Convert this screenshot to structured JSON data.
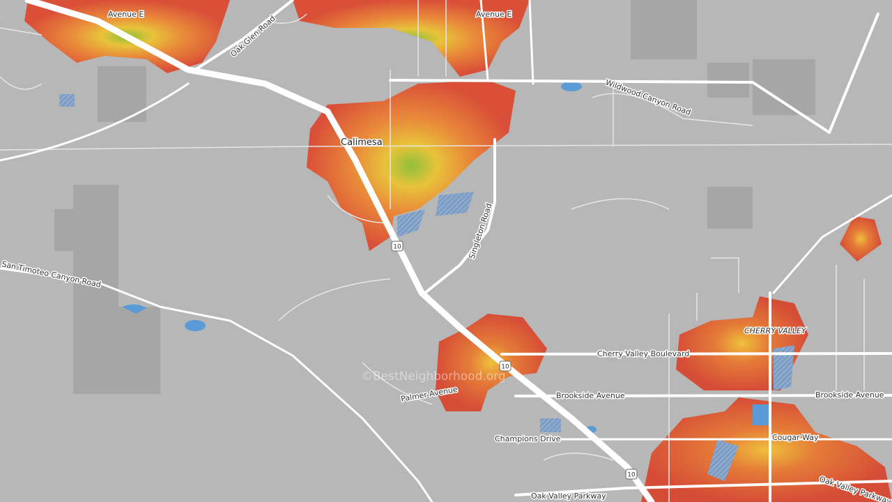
{
  "labels": {
    "avenue_e_west": "Avenue E",
    "avenue_e_east": "Avenue E",
    "oak_glen_road": "Oak Glen Road",
    "wildwood_canyon_road": "Wildwood Canyon Road",
    "calimesa": "Calimesa",
    "singleton_road": "Singleton Road",
    "san_timoteo_canyon_road": "San Timoteo Canyon Road",
    "cherry_valley": "CHERRY VALLEY",
    "cherry_valley_boulevard": "Cherry Valley Boulevard",
    "brookside_avenue_west": "Brookside Avenue",
    "brookside_avenue_east": "Brookside Avenue",
    "palmer_avenue": "Palmer Avenue",
    "champions_drive": "Champions Drive",
    "cougar_way": "Cougar Way",
    "oak_valley_parkway_west": "Oak Valley Parkway",
    "oak_valley_parkway_east": "Oak Valley Parkway"
  },
  "highway_shields": [
    "10",
    "10",
    "10"
  ],
  "watermark": "©BestNeighborhood.org"
}
